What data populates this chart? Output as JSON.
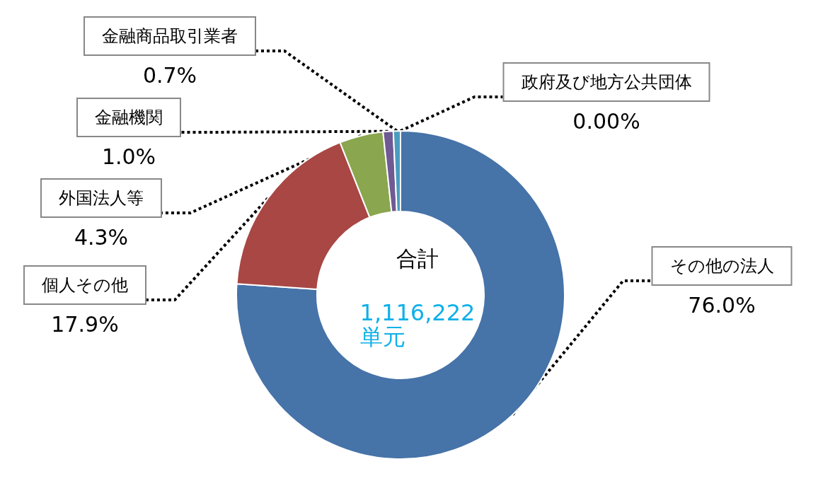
{
  "chart_data": {
    "type": "donut",
    "categories": [
      "その他の法人",
      "個人その他",
      "外国法人等",
      "金融機関",
      "金融商品取引業者",
      "政府及び地方公共団体"
    ],
    "values": [
      76.0,
      17.9,
      4.3,
      1.0,
      0.7,
      0.0
    ],
    "value_labels": [
      "76.0%",
      "17.9%",
      "4.3%",
      "1.0%",
      "0.7%",
      "0.00%"
    ],
    "colors": [
      "#4673a8",
      "#a84744",
      "#8aa64e",
      "#6f5a94",
      "#4a9cc0",
      "#e0773a"
    ],
    "annotations": [
      "合計",
      "1,116,222\n単元"
    ],
    "legend": false
  }
}
